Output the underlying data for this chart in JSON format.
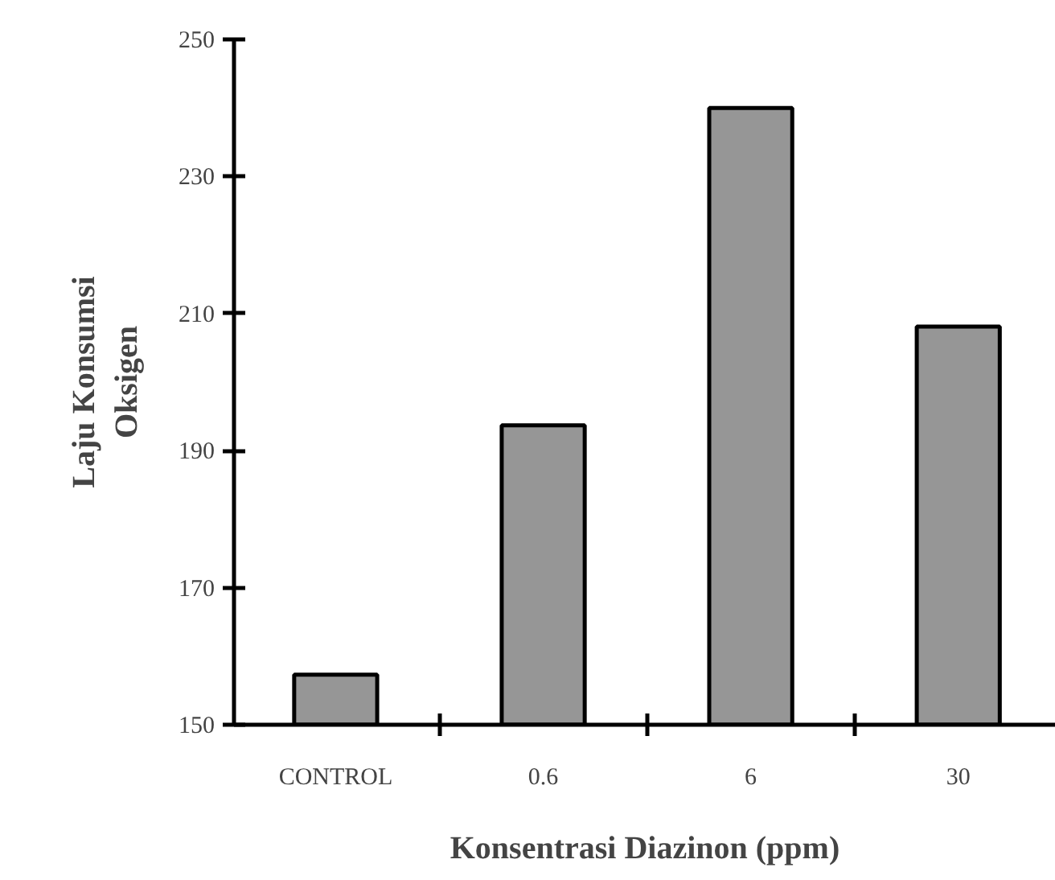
{
  "chart_data": {
    "type": "bar",
    "xlabel": "Konsentrasi Diazinon (ppm)",
    "ylabel": "Laju Konsumsi\nOksigen",
    "categories": [
      "CONTROL",
      "0.6",
      "6",
      "30"
    ],
    "values": [
      157.3,
      193.7,
      240,
      208.1
    ],
    "color": "#969696",
    "ylim": [
      150,
      250
    ],
    "yticks": [
      150,
      170,
      190,
      210,
      230,
      250
    ],
    "grid": false
  }
}
